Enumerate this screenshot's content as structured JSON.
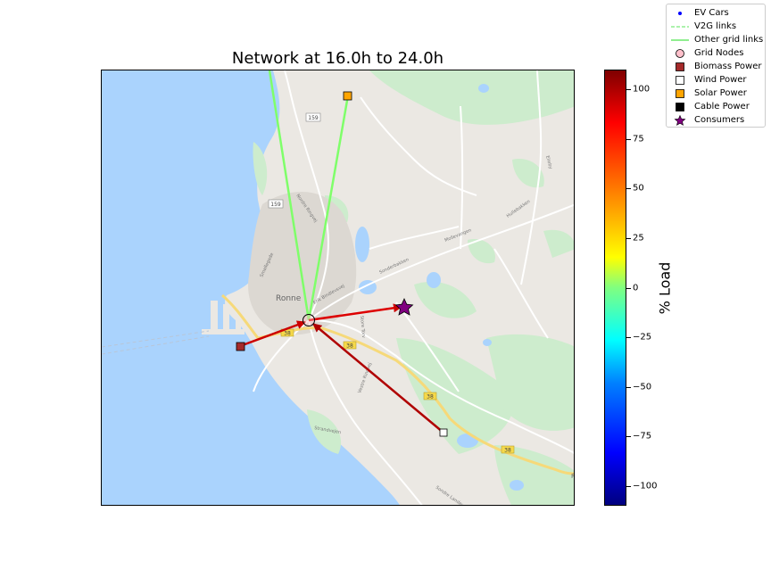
{
  "title": "Network at 16.0h to 24.0h",
  "map": {
    "town_label": "Ronne",
    "road_shields": [
      "159",
      "159",
      "38",
      "38",
      "38",
      "38"
    ],
    "street_labels": [
      "Nordre Ringvej",
      "Erik Bindlevsvej",
      "Sonderbakken",
      "Mollevangen",
      "Hullebakken",
      "Elleby",
      "Strandvejen",
      "Sondre Landevej",
      "Vestre Ringvej",
      "Smallegade",
      "Store Torv"
    ],
    "edge_label": "R"
  },
  "colors": {
    "water": "#aad3fd",
    "land": "#ebe8e3",
    "green": "#cdeccd",
    "v2g_links": "#90ee90",
    "grid_link": "#7fff6a",
    "load_link": "#cc0000",
    "biomass": "#a52a2a",
    "solar": "#ffa500",
    "wind": "#ffffff",
    "consumer": "#800080",
    "grid_node": "#ffc0cb",
    "ev": "#0000ff"
  },
  "legend": [
    {
      "label": "EV Cars",
      "icon": "blue-dot-icon"
    },
    {
      "label": "V2G links",
      "icon": "dashed-line-icon"
    },
    {
      "label": "Other grid links",
      "icon": "green-line-icon"
    },
    {
      "label": "Grid Nodes",
      "icon": "pink-circle-icon"
    },
    {
      "label": "Biomass Power",
      "icon": "brown-square-icon"
    },
    {
      "label": "Wind Power",
      "icon": "white-square-icon"
    },
    {
      "label": "Solar Power",
      "icon": "orange-square-icon"
    },
    {
      "label": "Cable Power",
      "icon": "black-square-icon"
    },
    {
      "label": "Consumers",
      "icon": "purple-star-icon"
    }
  ],
  "colorbar": {
    "label": "% Load",
    "range": [
      -110,
      110
    ],
    "ticks": [
      "100",
      "75",
      "50",
      "25",
      "0",
      "−25",
      "−50",
      "−75",
      "−100"
    ],
    "tick_values": [
      100,
      75,
      50,
      25,
      0,
      -25,
      -50,
      -75,
      -100
    ],
    "colormap": "jet"
  }
}
